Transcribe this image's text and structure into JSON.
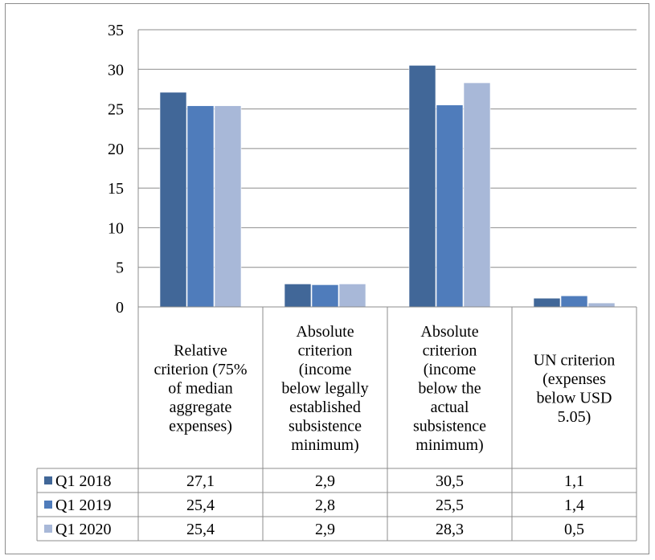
{
  "chart_data": {
    "type": "bar",
    "categories": [
      [
        "Relative",
        "criterion (75%",
        "of median",
        "aggregate",
        "expenses)"
      ],
      [
        "Absolute",
        "criterion",
        "(income",
        "below legally",
        "established",
        "subsistence",
        "minimum)"
      ],
      [
        "Absolute",
        "criterion",
        "(income",
        "below the",
        "actual",
        "subsistence",
        "minimum)"
      ],
      [
        "UN criterion",
        "(expenses",
        "below USD",
        "5.05)"
      ]
    ],
    "series": [
      {
        "name": "Q1 2018",
        "color": "#416798",
        "values": [
          27.1,
          2.9,
          30.5,
          1.1
        ],
        "labels": [
          "27,1",
          "2,9",
          "30,5",
          "1,1"
        ]
      },
      {
        "name": "Q1 2019",
        "color": "#4f7cbb",
        "values": [
          25.4,
          2.8,
          25.5,
          1.4
        ],
        "labels": [
          "25,4",
          "2,8",
          "25,5",
          "1,4"
        ]
      },
      {
        "name": "Q1 2020",
        "color": "#a8b8d8",
        "values": [
          25.4,
          2.9,
          28.3,
          0.5
        ],
        "labels": [
          "25,4",
          "2,9",
          "28,3",
          "0,5"
        ]
      }
    ],
    "ylim": [
      0,
      35
    ],
    "yticks": [
      "0",
      "5",
      "10",
      "15",
      "20",
      "25",
      "30",
      "35"
    ],
    "grid": true,
    "legend": "data-table"
  }
}
